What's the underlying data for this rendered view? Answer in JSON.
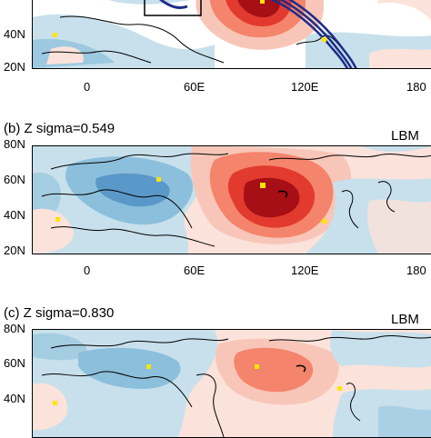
{
  "panels": [
    {
      "id": "a",
      "title": "",
      "tag": "",
      "lat_labels": [
        "40N",
        "20N"
      ],
      "lon_labels": [
        "0",
        "60E",
        "120E",
        "180"
      ]
    },
    {
      "id": "b",
      "title": "(b) Z sigma=0.549",
      "tag": "LBM",
      "lat_labels": [
        "80N",
        "60N",
        "40N",
        "20N"
      ],
      "lon_labels": [
        "0",
        "60E",
        "120E",
        "180"
      ]
    },
    {
      "id": "c",
      "title": "(c) Z sigma=0.830",
      "tag": "LBM",
      "lat_labels": [
        "80N",
        "60N",
        "40N"
      ],
      "lon_labels": []
    }
  ],
  "colors": {
    "dark_red": "#a50f15",
    "red": "#e23a2e",
    "mid_red": "#f4846b",
    "light_red": "#f8c6b8",
    "faint_red": "#fbe2da",
    "light_blue": "#c7e0ec",
    "mid_blue": "#8cbfdb",
    "blue": "#4e8fc4",
    "contour_navy": "#1f2d8a",
    "marker_yellow": "#ffe600"
  }
}
